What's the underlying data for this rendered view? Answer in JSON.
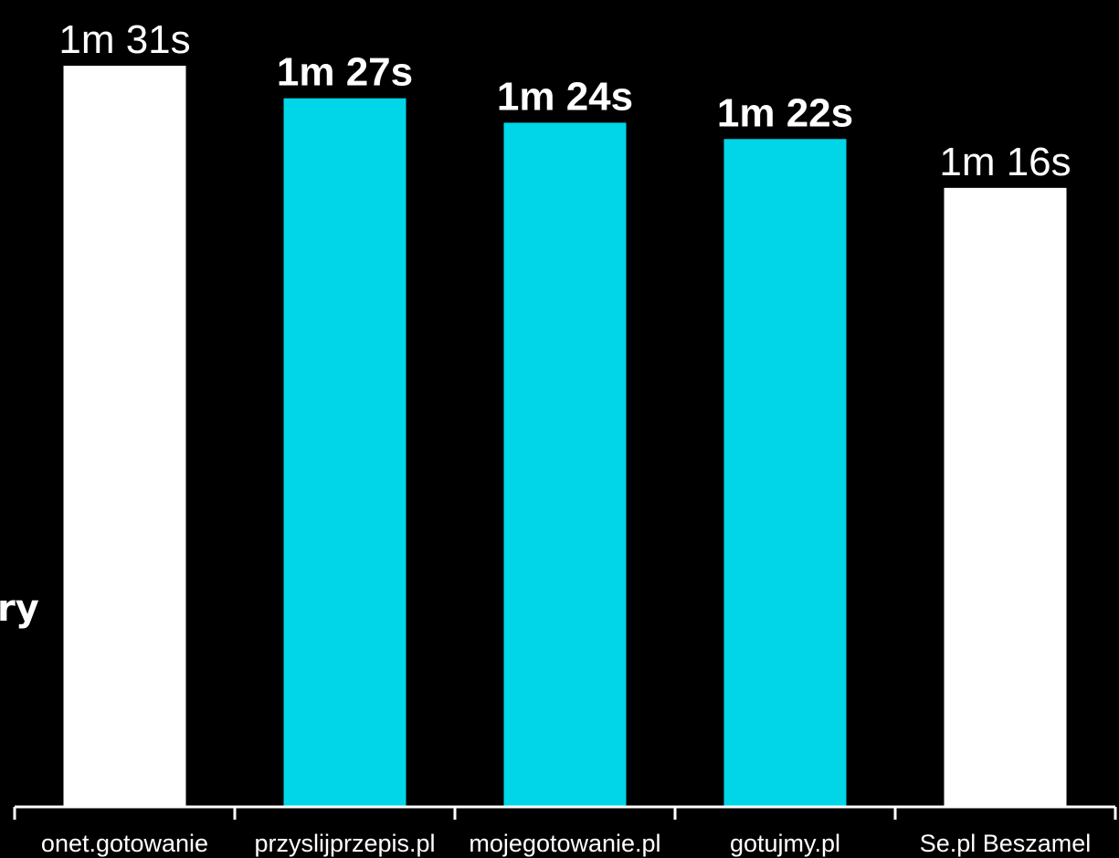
{
  "chart_data": {
    "type": "bar",
    "title": "",
    "xlabel": "",
    "ylabel": "",
    "categories": [
      "onet.gotowanie",
      "przyslijprzepis.pl",
      "mojegotowanie.pl",
      "gotujmy.pl",
      "Se.pl Beszamel"
    ],
    "values": [
      91,
      87,
      84,
      82,
      76
    ],
    "value_unit": "seconds",
    "data_labels": [
      "1m 31s",
      "1m 27s",
      "1m 24s",
      "1m 22s",
      "1m 16s"
    ],
    "highlighted": [
      false,
      true,
      true,
      true,
      false
    ],
    "ylim": [
      0,
      98
    ],
    "grid": false,
    "legend": "none"
  },
  "colors": {
    "background": "#000000",
    "highlight_bar": "#00d6e8",
    "normal_bar": "#ffffff",
    "text": "#ffffff"
  },
  "side_text": "ry"
}
